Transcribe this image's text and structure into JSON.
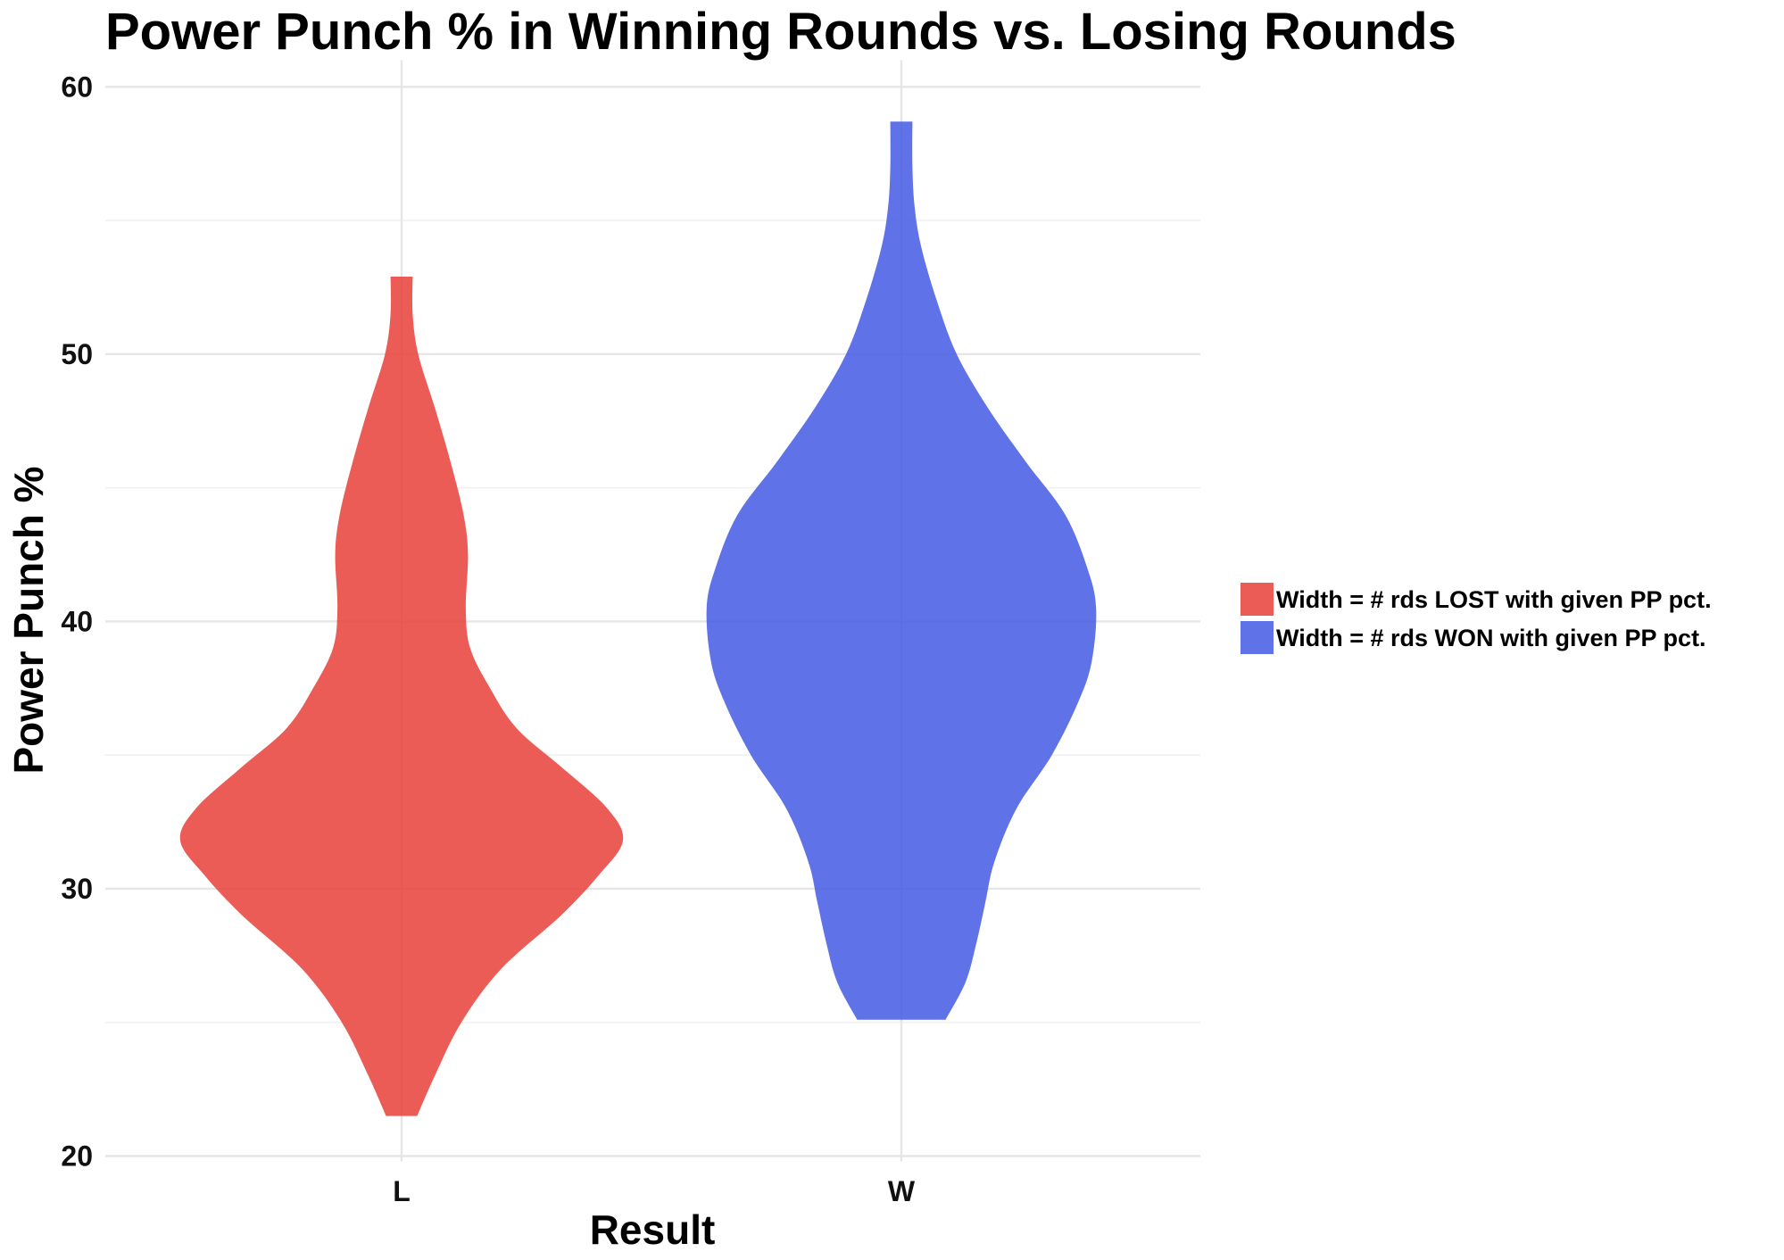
{
  "chart_data": {
    "type": "violin",
    "title": "Power Punch % in Winning Rounds vs. Losing Rounds",
    "xlabel": "Result",
    "ylabel": "Power Punch %",
    "categories": [
      "L",
      "W"
    ],
    "ylim": [
      19.8,
      61
    ],
    "yticks": [
      20,
      30,
      40,
      50,
      60
    ],
    "grid": true,
    "legend_position": "right",
    "series": [
      {
        "category": "L",
        "legend": "Width = # rds LOST with given PP pct.",
        "color": "#E8453F",
        "min": 21.5,
        "max": 52.9,
        "density_profile": [
          [
            21.5,
            0.07
          ],
          [
            23,
            0.15
          ],
          [
            25,
            0.27
          ],
          [
            27,
            0.45
          ],
          [
            29,
            0.72
          ],
          [
            30.5,
            0.89
          ],
          [
            31.8,
            1.0
          ],
          [
            33,
            0.93
          ],
          [
            34.5,
            0.73
          ],
          [
            36,
            0.52
          ],
          [
            37.5,
            0.4
          ],
          [
            39,
            0.31
          ],
          [
            40.5,
            0.29
          ],
          [
            42.5,
            0.3
          ],
          [
            44,
            0.28
          ],
          [
            46,
            0.22
          ],
          [
            48,
            0.15
          ],
          [
            50,
            0.075
          ],
          [
            51.5,
            0.05
          ],
          [
            52.9,
            0.05
          ]
        ]
      },
      {
        "category": "W",
        "legend": "Width = # rds WON with given PP pct.",
        "color": "#4A5FE4",
        "min": 25.1,
        "max": 58.7,
        "density_profile": [
          [
            25.1,
            0.2
          ],
          [
            26.5,
            0.29
          ],
          [
            28,
            0.34
          ],
          [
            29.5,
            0.38
          ],
          [
            31,
            0.42
          ],
          [
            33,
            0.52
          ],
          [
            35,
            0.68
          ],
          [
            37,
            0.8
          ],
          [
            38.5,
            0.86
          ],
          [
            40.5,
            0.88
          ],
          [
            42,
            0.84
          ],
          [
            44,
            0.74
          ],
          [
            46,
            0.56
          ],
          [
            48,
            0.39
          ],
          [
            50,
            0.25
          ],
          [
            52,
            0.16
          ],
          [
            54,
            0.09
          ],
          [
            55.5,
            0.06
          ],
          [
            57,
            0.05
          ],
          [
            58.7,
            0.05
          ]
        ]
      }
    ]
  }
}
